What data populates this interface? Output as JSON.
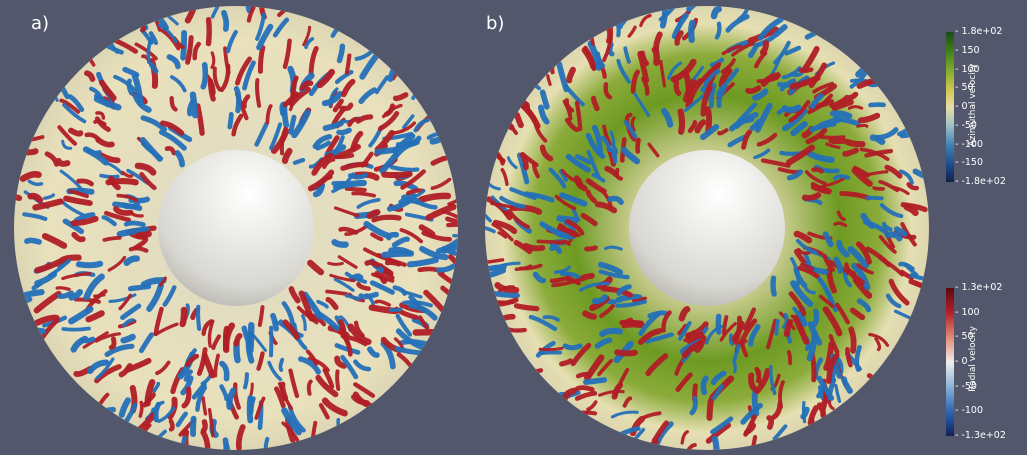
{
  "panels": [
    {
      "label": "a)"
    },
    {
      "label": "b)"
    }
  ],
  "colorbars": {
    "azimuthal": {
      "title": "Azimuthal velocity",
      "ticks": [
        "1.8e+02",
        "150",
        "100",
        "50",
        "0",
        "-50",
        "-100",
        "-150",
        "-1.8e+02"
      ],
      "colors": [
        "#1f4a1c",
        "#3f7f1c",
        "#7fa92c",
        "#cbc54c",
        "#e8dfa4",
        "#9fc0c8",
        "#3f86b4",
        "#1f4f90",
        "#141f4c"
      ]
    },
    "radial": {
      "title": "Radial velocity",
      "ticks": [
        "1.3e+02",
        "100",
        "50",
        "0",
        "-50",
        "-100",
        "-1.3e+02"
      ],
      "colors": [
        "#5a0a12",
        "#b4202a",
        "#e08a78",
        "#f0ecea",
        "#8ab4d8",
        "#2c66b4",
        "#141f5c"
      ]
    },
    "tick_color": "#ffffff"
  },
  "scene_colors": {
    "background": "#52576c",
    "red_vortex": "#b01e25",
    "blue_vortex": "#2470b8",
    "green_region": "#5f8f1e",
    "cream": "#e9e0bc",
    "sphere_light": "#f7f7f4",
    "sphere_dark": "#b9b8b2"
  }
}
